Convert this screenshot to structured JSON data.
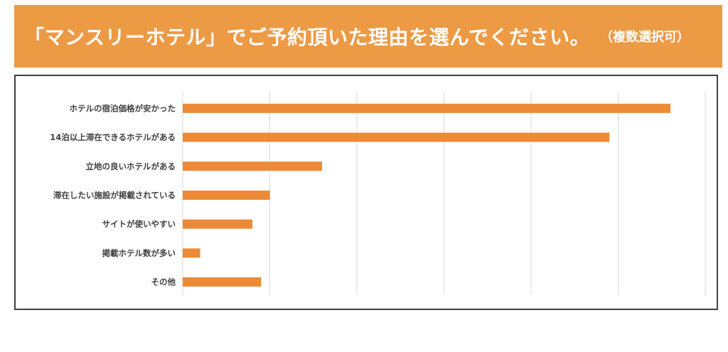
{
  "header": {
    "title": "「マンスリーホテル」でご予約頂いた理由を選んでください。",
    "note": "（複数選択可）"
  },
  "colors": {
    "banner": "#ed9a45",
    "bar": "#ec8a37",
    "gridline": "#d9d9d9",
    "frame": "#404040"
  },
  "chart_data": {
    "type": "bar",
    "orientation": "horizontal",
    "categories": [
      "ホテルの宿泊価格が安かった",
      "14泊以上滞在できるホテルがある",
      "立地の良いホテルがある",
      "滞在したい施設が掲載されている",
      "サイトが使いやすい",
      "掲載ホテル数が多い",
      "その他"
    ],
    "values": [
      28,
      24.5,
      8,
      5,
      4,
      1,
      4.5
    ],
    "xlim": [
      0,
      30
    ],
    "grid": true,
    "legend": "none"
  }
}
